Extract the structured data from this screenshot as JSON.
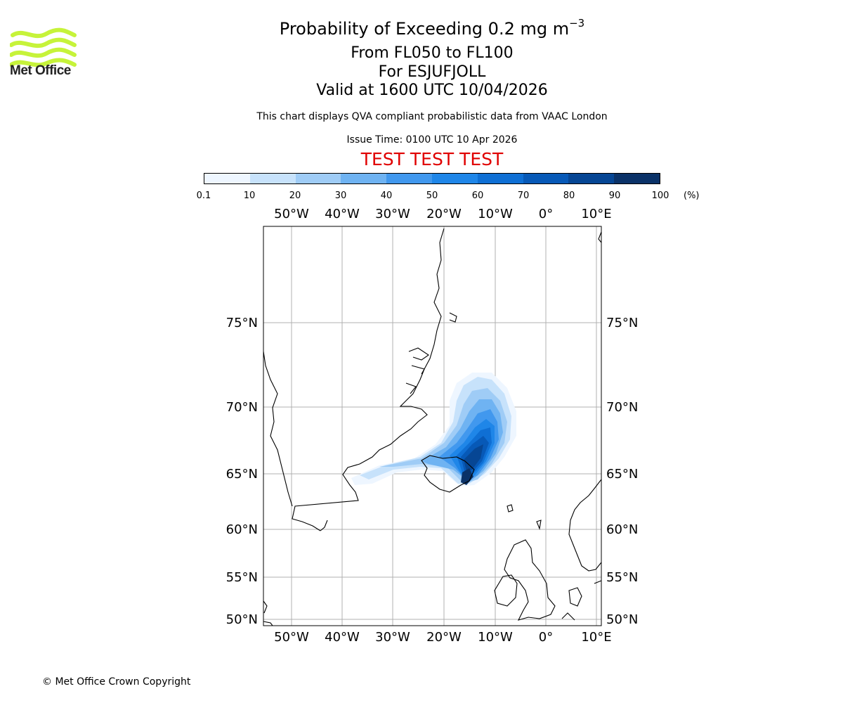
{
  "logo": {
    "text": "Met Office",
    "icon": "met-office-wave-logo",
    "color": "#c6f33a"
  },
  "header": {
    "title_main": "Probability of Exceeding 0.2 mg m",
    "title_sup": "−3",
    "levels": "From FL050 to FL100",
    "volcano": "For ESJUFJOLL",
    "valid": "Valid at 1600 UTC 10/04/2026",
    "disclaimer": "This chart displays QVA compliant probabilistic data from VAAC London",
    "issue_time": "Issue Time: 0100 UTC 10 Apr 2026",
    "test_banner": "TEST TEST TEST"
  },
  "colorbar": {
    "ticks": [
      "0.1",
      "10",
      "20",
      "30",
      "40",
      "50",
      "60",
      "70",
      "80",
      "90",
      "100"
    ],
    "unit": "(%)",
    "colors": [
      "#eef6ff",
      "#c7e2fb",
      "#9fccf6",
      "#6fb3f2",
      "#4198ee",
      "#1f86e8",
      "#0f6fd4",
      "#0759b7",
      "#064694",
      "#0a3268"
    ]
  },
  "map": {
    "lon_labels": [
      "50°W",
      "40°W",
      "30°W",
      "20°W",
      "10°W",
      "0°",
      "10°E"
    ],
    "lat_labels": [
      "75°N",
      "70°N",
      "65°N",
      "60°N",
      "55°N",
      "50°N"
    ]
  },
  "footer": {
    "copyright": "© Met Office Crown Copyright"
  }
}
